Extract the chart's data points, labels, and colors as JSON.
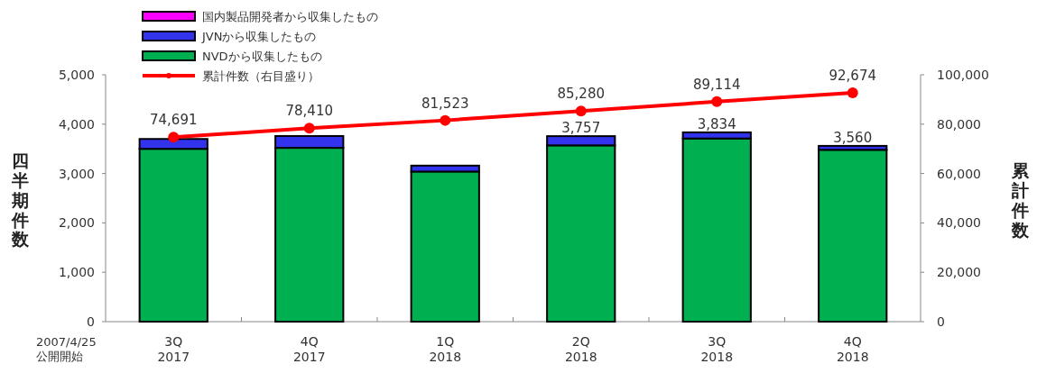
{
  "chart_data": {
    "type": "bar",
    "stacked": true,
    "categories": [
      "3Q\n2017",
      "4Q\n2017",
      "1Q\n2018",
      "2Q\n2018",
      "3Q\n2018",
      "4Q\n2018"
    ],
    "series": [
      {
        "name": "NVDから収集したもの",
        "color": "#00b050",
        "values": [
          3500,
          3520,
          3040,
          3570,
          3710,
          3480
        ]
      },
      {
        "name": "JVNから収集したもの",
        "color": "#3333ee",
        "values": [
          200,
          240,
          120,
          187,
          124,
          80
        ]
      },
      {
        "name": "国内製品開発者から収集したもの",
        "color": "#ff00ff",
        "values": [
          0,
          0,
          0,
          0,
          0,
          0
        ]
      },
      {
        "name": "累計件数（右目盛り）",
        "type": "line",
        "axis": "y2",
        "color": "#ff0000",
        "marker": "circle",
        "values": [
          74691,
          78410,
          81523,
          85280,
          89114,
          92674
        ],
        "value_labels": [
          "74,691",
          "78,410",
          "81,523",
          "85,280",
          "89,114",
          "92,674"
        ]
      }
    ],
    "totals": [
      null,
      null,
      null,
      "3,757",
      "3,834",
      "3,560"
    ],
    "ylabel": "四半期件数",
    "y2label": "累計件数",
    "ylim": [
      0,
      5000
    ],
    "yticks": [
      {
        "value": 0,
        "label": "0"
      },
      {
        "value": 1000,
        "label": "1,000"
      },
      {
        "value": 2000,
        "label": "2,000"
      },
      {
        "value": 3000,
        "label": "3,000"
      },
      {
        "value": 4000,
        "label": "4,000"
      },
      {
        "value": 5000,
        "label": "5,000"
      }
    ],
    "y2lim": [
      0,
      100000
    ],
    "y2ticks": [
      {
        "value": 0,
        "label": "0"
      },
      {
        "value": 20000,
        "label": "20,000"
      },
      {
        "value": 40000,
        "label": "40,000"
      },
      {
        "value": 60000,
        "label": "60,000"
      },
      {
        "value": 80000,
        "label": "80,000"
      },
      {
        "value": 100000,
        "label": "100,000"
      }
    ],
    "annotations": [
      "2007/4/25\n公開開始"
    ],
    "legend": "top left",
    "grid": false
  }
}
